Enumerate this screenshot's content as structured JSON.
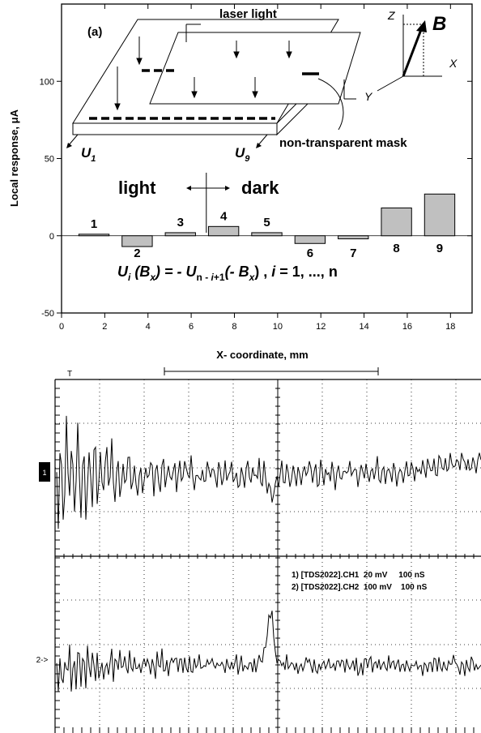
{
  "chart_data": [
    {
      "type": "bar",
      "panel_label": "(a)",
      "xlabel": "X- coordinate, mm",
      "ylabel": "Local response, μA",
      "xlim": [
        0,
        19
      ],
      "ylim": [
        -50,
        150
      ],
      "x_ticks": [
        0,
        2,
        4,
        6,
        8,
        10,
        12,
        14,
        16,
        18
      ],
      "y_ticks": [
        -50,
        0,
        50,
        100
      ],
      "bar_color": "#c0c0c0",
      "bar_width": 1.4,
      "bars": [
        {
          "label": "1",
          "x": 1.5,
          "value": 1
        },
        {
          "label": "2",
          "x": 3.5,
          "value": -7
        },
        {
          "label": "3",
          "x": 5.5,
          "value": 2
        },
        {
          "label": "4",
          "x": 7.5,
          "value": 6
        },
        {
          "label": "5",
          "x": 9.5,
          "value": 2
        },
        {
          "label": "6",
          "x": 11.5,
          "value": -5
        },
        {
          "label": "7",
          "x": 13.5,
          "value": -2
        },
        {
          "label": "8",
          "x": 15.5,
          "value": 18
        },
        {
          "label": "9",
          "x": 17.5,
          "value": 27
        }
      ],
      "light_boundary_x": 6.7,
      "annotations": {
        "laser": "laser light",
        "mask": "non-transparent mask",
        "light": "light",
        "dark": "dark",
        "u1": "U",
        "u1_sub": "1",
        "u9": "U",
        "u9_sub": "9",
        "axis_z": "Z",
        "axis_x": "X",
        "axis_y": "Y",
        "field": "B",
        "formula_ui": "U",
        "formula_i": "i",
        "formula_bx_open": " (B",
        "formula_x": "x",
        "formula_mid": ") = - U",
        "formula_n_i1_a": "n - ",
        "formula_n_i1_b": "i",
        "formula_n_i1_c": "+1",
        "formula_tail_open": "(- B",
        "formula_tail_close": ") , ",
        "formula_i2": "i",
        "formula_range": " = 1, ..., n"
      }
    },
    {
      "type": "line",
      "subtype": "oscilloscope",
      "legend": [
        "1) [TDS2022].CH1  20 mV     100 nS",
        "2) [TDS2022].CH2  100 mV    100 nS"
      ],
      "ch1_marker": "1",
      "ch2_marker": "2->",
      "series": [
        {
          "name": "CH1",
          "description": "strongly oscillating trace, large amplitude at left decaying to noise, dip near center"
        },
        {
          "name": "CH2",
          "description": "noise trace with a sharp peak near the center of the screen"
        }
      ],
      "grid": true
    }
  ]
}
